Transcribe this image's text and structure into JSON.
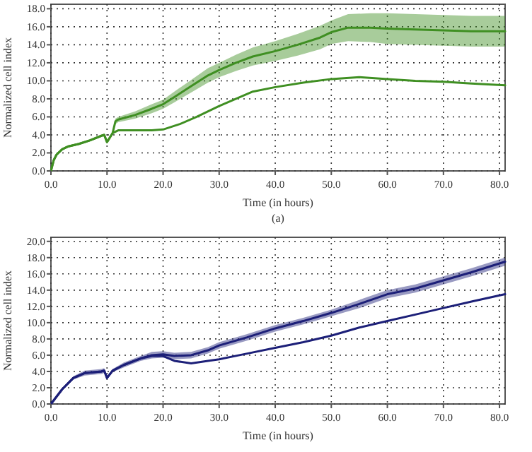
{
  "chart_data": [
    {
      "type": "line",
      "xlabel": "Time (in hours)",
      "ylabel": "Normalized cell index",
      "annotations": [
        "(a)"
      ],
      "grid": true,
      "line_style": "solid",
      "marker": "none",
      "xlim": [
        0,
        81
      ],
      "ylim": [
        0,
        18.5
      ],
      "xticks": [
        {
          "value": 0,
          "label": "0.0"
        },
        {
          "value": 10,
          "label": "10.0"
        },
        {
          "value": 20,
          "label": "20.0"
        },
        {
          "value": 30,
          "label": "30.0"
        },
        {
          "value": 40,
          "label": "40.0"
        },
        {
          "value": 50,
          "label": "50.0"
        },
        {
          "value": 60,
          "label": "60.0"
        },
        {
          "value": 70,
          "label": "70.0"
        },
        {
          "value": 80,
          "label": "80.0"
        }
      ],
      "yticks": [
        {
          "value": 0,
          "label": "0.0"
        },
        {
          "value": 2,
          "label": "2.0"
        },
        {
          "value": 4,
          "label": "4.0"
        },
        {
          "value": 6,
          "label": "6.0"
        },
        {
          "value": 8,
          "label": "8.0"
        },
        {
          "value": 10,
          "label": "10.0"
        },
        {
          "value": 12,
          "label": "12.0"
        },
        {
          "value": 14,
          "label": "14.0"
        },
        {
          "value": 16,
          "label": "16.0"
        },
        {
          "value": 18,
          "label": "18.0"
        }
      ],
      "series": [
        {
          "color": "#3f8f22",
          "x": [
            0,
            0.5,
            1,
            2,
            3,
            5,
            7,
            9,
            9.5,
            10,
            11,
            11.5,
            12,
            15,
            18,
            20,
            22,
            25,
            28,
            30,
            33,
            36,
            40,
            44,
            48,
            50,
            53,
            57,
            60,
            65,
            70,
            75,
            81
          ],
          "values": [
            0,
            1.2,
            1.8,
            2.4,
            2.7,
            3.0,
            3.4,
            3.9,
            4.0,
            3.2,
            4.2,
            5.5,
            5.7,
            6.2,
            6.9,
            7.4,
            8.2,
            9.4,
            10.6,
            11.2,
            12.0,
            12.7,
            13.3,
            14.0,
            14.8,
            15.4,
            15.9,
            15.9,
            15.8,
            15.7,
            15.6,
            15.5,
            15.5
          ],
          "lower": [
            0,
            1.1,
            1.7,
            2.3,
            2.6,
            2.9,
            3.3,
            3.8,
            3.9,
            3.1,
            4.0,
            5.2,
            5.4,
            5.8,
            6.4,
            6.9,
            7.6,
            8.7,
            9.8,
            10.4,
            11.1,
            11.7,
            12.2,
            12.8,
            13.5,
            14.1,
            14.4,
            14.3,
            14.1,
            14.0,
            13.9,
            13.8,
            13.8
          ],
          "upper": [
            0,
            1.3,
            1.9,
            2.5,
            2.8,
            3.1,
            3.5,
            4.0,
            4.1,
            3.3,
            4.4,
            5.8,
            6.0,
            6.6,
            7.4,
            7.9,
            8.8,
            10.1,
            11.4,
            12.0,
            12.9,
            13.7,
            14.4,
            15.2,
            16.1,
            16.7,
            17.4,
            17.5,
            17.5,
            17.4,
            17.3,
            17.2,
            17.2
          ]
        },
        {
          "color": "#3f8f22",
          "x": [
            0,
            0.5,
            1,
            2,
            3,
            5,
            7,
            9,
            9.5,
            10,
            11,
            12,
            15,
            18,
            20,
            23,
            26,
            30,
            33,
            36,
            40,
            45,
            50,
            55,
            60,
            65,
            70,
            75,
            81
          ],
          "values": [
            0,
            1.2,
            1.8,
            2.4,
            2.7,
            3.0,
            3.4,
            3.9,
            4.0,
            3.2,
            4.2,
            4.5,
            4.5,
            4.5,
            4.6,
            5.2,
            6.0,
            7.2,
            8.0,
            8.8,
            9.3,
            9.8,
            10.2,
            10.4,
            10.2,
            10.0,
            9.9,
            9.7,
            9.5
          ]
        }
      ]
    },
    {
      "type": "line",
      "xlabel": "Time (in hours)",
      "ylabel": "Normalized cell index",
      "grid": true,
      "line_style": "solid",
      "marker": "none",
      "xlim": [
        0,
        81
      ],
      "ylim": [
        0,
        20.5
      ],
      "xticks": [
        {
          "value": 0,
          "label": "0.0"
        },
        {
          "value": 10,
          "label": "10.0"
        },
        {
          "value": 20,
          "label": "20.0"
        },
        {
          "value": 30,
          "label": "30.0"
        },
        {
          "value": 40,
          "label": "40.0"
        },
        {
          "value": 50,
          "label": "50.0"
        },
        {
          "value": 60,
          "label": "60.0"
        },
        {
          "value": 70,
          "label": "70.0"
        },
        {
          "value": 80,
          "label": "80.0"
        }
      ],
      "yticks": [
        {
          "value": 0,
          "label": "0.0"
        },
        {
          "value": 2,
          "label": "2.0"
        },
        {
          "value": 4,
          "label": "4.0"
        },
        {
          "value": 6,
          "label": "6.0"
        },
        {
          "value": 8,
          "label": "8.0"
        },
        {
          "value": 10,
          "label": "10.0"
        },
        {
          "value": 12,
          "label": "12.0"
        },
        {
          "value": 14,
          "label": "14.0"
        },
        {
          "value": 16,
          "label": "16.0"
        },
        {
          "value": 18,
          "label": "18.0"
        },
        {
          "value": 20,
          "label": "20.0"
        }
      ],
      "series": [
        {
          "color": "#1c1f78",
          "x": [
            0,
            2,
            4,
            6,
            9,
            9.5,
            10,
            11,
            13,
            16,
            18,
            20,
            22,
            25,
            28,
            30,
            35,
            40,
            45,
            50,
            55,
            60,
            65,
            70,
            75,
            81
          ],
          "values": [
            0,
            1.8,
            3.2,
            3.8,
            4.0,
            4.1,
            3.2,
            4.1,
            4.8,
            5.6,
            6.0,
            6.1,
            5.9,
            6.0,
            6.6,
            7.2,
            8.2,
            9.3,
            10.2,
            11.2,
            12.3,
            13.5,
            14.2,
            15.2,
            16.2,
            17.5
          ],
          "lower": [
            0,
            1.7,
            3.0,
            3.5,
            3.7,
            3.8,
            3.0,
            3.9,
            4.5,
            5.3,
            5.6,
            5.7,
            5.5,
            5.6,
            6.2,
            6.8,
            7.8,
            8.9,
            9.8,
            10.8,
            11.8,
            13.0,
            13.7,
            14.7,
            15.7,
            17.0
          ],
          "upper": [
            0,
            1.9,
            3.4,
            4.1,
            4.3,
            4.4,
            3.4,
            4.3,
            5.1,
            5.9,
            6.4,
            6.5,
            6.3,
            6.4,
            7.0,
            7.6,
            8.6,
            9.7,
            10.6,
            11.6,
            12.8,
            14.0,
            14.7,
            15.7,
            16.7,
            18.0
          ]
        },
        {
          "color": "#1c1f78",
          "x": [
            0,
            2,
            4,
            6,
            9,
            9.5,
            10,
            11,
            13,
            16,
            18,
            20,
            22,
            25,
            28,
            30,
            35,
            40,
            45,
            50,
            55,
            60,
            65,
            70,
            75,
            81
          ],
          "values": [
            0,
            1.8,
            3.2,
            3.8,
            4.0,
            4.1,
            3.2,
            4.1,
            4.8,
            5.6,
            5.9,
            5.9,
            5.3,
            5.0,
            5.3,
            5.5,
            6.2,
            6.9,
            7.6,
            8.4,
            9.4,
            10.2,
            11.0,
            11.8,
            12.6,
            13.5
          ]
        }
      ]
    }
  ]
}
